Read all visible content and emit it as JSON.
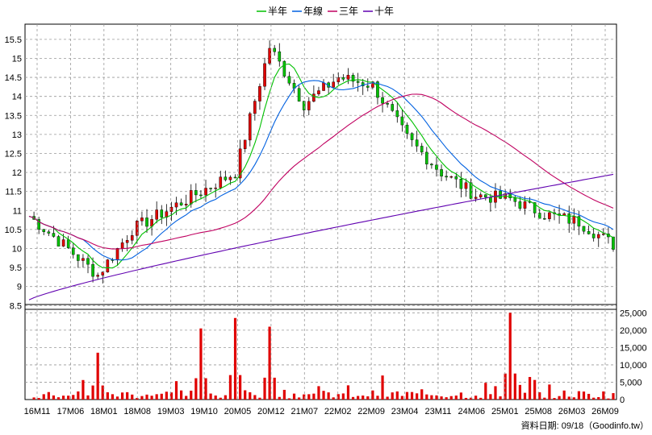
{
  "legend": [
    {
      "label": "半年",
      "color": "#00c000"
    },
    {
      "label": "年線",
      "color": "#0060e0"
    },
    {
      "label": "三年",
      "color": "#c00060"
    },
    {
      "label": "十年",
      "color": "#6000b0"
    }
  ],
  "footer": "資料日期: 09/18（Goodinfo.tw）",
  "chart_data": {
    "type": "candlestick",
    "price_axis": {
      "ylim": [
        8.4,
        15.9
      ],
      "ticks": [
        "8.5",
        "9",
        "9.5",
        "10",
        "10.5",
        "11",
        "11.5",
        "12",
        "12.5",
        "13",
        "13.5",
        "14",
        "14.5",
        "15",
        "15.5"
      ]
    },
    "volume_axis": {
      "ylim": [
        0,
        26000
      ],
      "ticks": [
        "0",
        "5,000",
        "10,000",
        "15,000",
        "20,000",
        "25,000"
      ]
    },
    "x_ticks": [
      "16M11",
      "17M06",
      "18M01",
      "18M08",
      "19M03",
      "19M10",
      "20M05",
      "20M12",
      "21M07",
      "22M02",
      "22M09",
      "23M04",
      "23M11",
      "24M06",
      "25M01",
      "25M08",
      "26M03",
      "26M09"
    ],
    "candle_colors": {
      "up": "#e00000",
      "down": "#00c000"
    },
    "ohlc_key_points": [
      {
        "x": "16M11",
        "close": 10.85
      },
      {
        "x": "17M06",
        "close": 10.1
      },
      {
        "x": "18M01",
        "close": 9.3
      },
      {
        "x": "18M08",
        "close": 10.5
      },
      {
        "x": "19M03",
        "close": 11.0
      },
      {
        "x": "19M10",
        "close": 11.5
      },
      {
        "x": "20M05",
        "close": 12.0
      },
      {
        "x": "20M12",
        "close": 15.3
      },
      {
        "x": "21M07",
        "close": 13.8
      },
      {
        "x": "22M02",
        "close": 14.5
      },
      {
        "x": "22M09",
        "close": 14.3
      },
      {
        "x": "23M04",
        "close": 12.9
      },
      {
        "x": "23M11",
        "close": 12.0
      },
      {
        "x": "24M06",
        "close": 11.4
      },
      {
        "x": "25M01",
        "close": 11.3
      },
      {
        "x": "25M08",
        "close": 10.9
      },
      {
        "x": "26M03",
        "close": 10.7
      },
      {
        "x": "26M09",
        "close": 10.1
      }
    ],
    "volume_peaks": [
      {
        "x": "18M01",
        "value": 13500
      },
      {
        "x": "19M10",
        "value": 20500
      },
      {
        "x": "20M05",
        "value": 23500
      },
      {
        "x": "20M12",
        "value": 21000
      },
      {
        "x": "25M01",
        "value": 25000
      }
    ]
  }
}
